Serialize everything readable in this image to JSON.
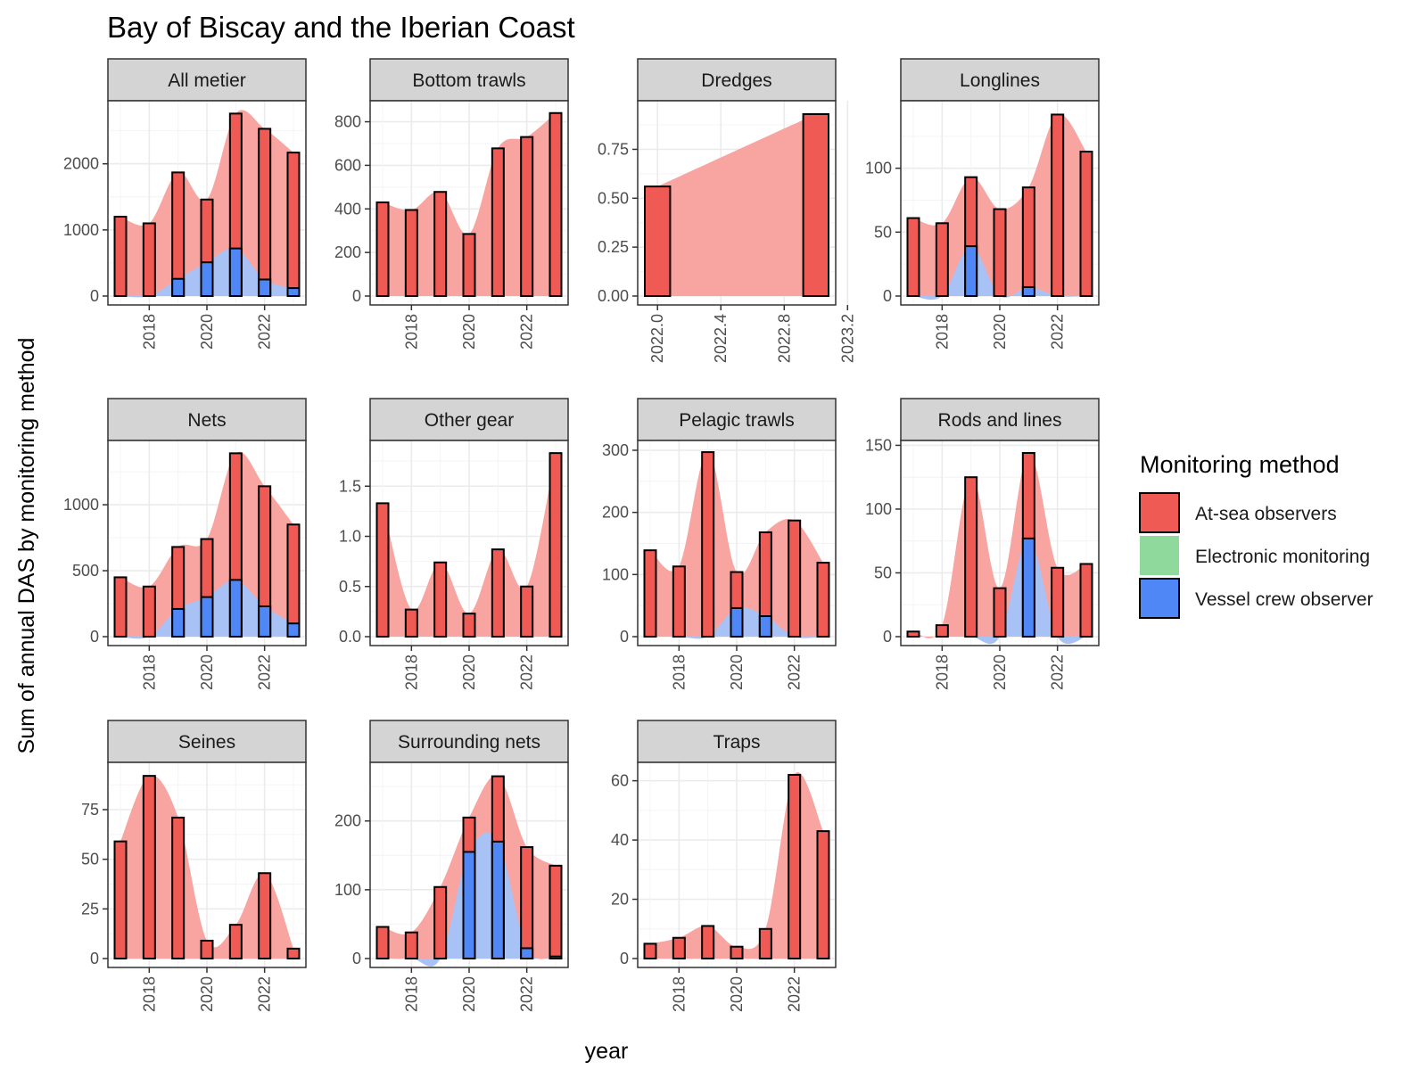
{
  "chart_data": {
    "type": "bar",
    "title": "Bay of Biscay and the Iberian Coast",
    "xlabel": "year",
    "ylabel": "Sum of annual DAS by monitoring method",
    "legend": {
      "title": "Monitoring method",
      "position": "right",
      "entries": [
        {
          "name": "At-sea observers",
          "color": "#F8766D"
        },
        {
          "name": "Electronic monitoring",
          "color": "#7CD192"
        },
        {
          "name": "Vessel crew observer",
          "color": "#5B8FF9"
        }
      ]
    },
    "colors": {
      "at_sea": "#F05A54",
      "at_sea_area": "#F8A4A0",
      "electronic": "#8ED99B",
      "vessel": "#5087F7",
      "vessel_area": "#A9C2F6",
      "strip_bg": "#D4D4D4",
      "grid_major": "#EBEBEB",
      "grid_minor": "#F4F4F4"
    },
    "grid": true,
    "panels": [
      {
        "name": "All metier",
        "years": [
          2017,
          2018,
          2019,
          2020,
          2021,
          2022,
          2023
        ],
        "at_sea_observers": [
          1200,
          1100,
          1870,
          1460,
          2760,
          2530,
          2170
        ],
        "vessel_crew_observer": [
          0,
          0,
          260,
          510,
          720,
          250,
          120
        ],
        "ylim": [
          0,
          2900
        ],
        "yticks": [
          0,
          1000,
          2000
        ],
        "xticks": [
          2018,
          2020,
          2022
        ]
      },
      {
        "name": "Bottom trawls",
        "years": [
          2017,
          2018,
          2019,
          2020,
          2021,
          2022,
          2023
        ],
        "at_sea_observers": [
          430,
          395,
          478,
          285,
          678,
          730,
          840
        ],
        "vessel_crew_observer": [
          0,
          0,
          0,
          0,
          0,
          0,
          0
        ],
        "ylim": [
          0,
          880
        ],
        "yticks": [
          0,
          200,
          400,
          600,
          800
        ],
        "xticks": [
          2018,
          2020,
          2022
        ]
      },
      {
        "name": "Dredges",
        "years": [
          2022,
          2023
        ],
        "at_sea_observers": [
          0.56,
          0.93
        ],
        "vessel_crew_observer": [
          0,
          0
        ],
        "ylim": [
          0,
          0.98
        ],
        "yticks": [
          0,
          0.25,
          0.5,
          0.75
        ],
        "ytick_labels": [
          "0.00",
          "0.25",
          "0.50",
          "0.75"
        ],
        "xlim": [
          1921.9,
          2023.25
        ],
        "xticks": [
          2022.0,
          2022.4,
          2022.8,
          2023.2
        ],
        "xtick_labels": [
          "2022.0",
          "2022.4",
          "2022.8",
          "2023.2"
        ]
      },
      {
        "name": "Longlines",
        "years": [
          2017,
          2018,
          2019,
          2020,
          2021,
          2022,
          2023
        ],
        "at_sea_observers": [
          61,
          57,
          93,
          68,
          85,
          142,
          113
        ],
        "vessel_crew_observer": [
          0,
          0,
          39,
          0,
          7,
          0,
          0
        ],
        "ylim": [
          0,
          150
        ],
        "yticks": [
          0,
          50,
          100
        ],
        "xticks": [
          2018,
          2020,
          2022
        ]
      },
      {
        "name": "Nets",
        "years": [
          2017,
          2018,
          2019,
          2020,
          2021,
          2022,
          2023
        ],
        "at_sea_observers": [
          450,
          380,
          680,
          740,
          1390,
          1140,
          850
        ],
        "vessel_crew_observer": [
          0,
          0,
          210,
          300,
          430,
          230,
          100
        ],
        "ylim": [
          0,
          1460
        ],
        "yticks": [
          0,
          500,
          1000
        ],
        "xticks": [
          2018,
          2020,
          2022
        ]
      },
      {
        "name": "Other gear",
        "years": [
          2017,
          2018,
          2019,
          2020,
          2021,
          2022,
          2023
        ],
        "at_sea_observers": [
          1.33,
          0.27,
          0.74,
          0.23,
          0.87,
          0.5,
          1.83
        ],
        "vessel_crew_observer": [
          0,
          0,
          0,
          0,
          0,
          0,
          0
        ],
        "ylim": [
          0,
          1.92
        ],
        "yticks": [
          0,
          0.5,
          1,
          1.5
        ],
        "ytick_labels": [
          "0.0",
          "0.5",
          "1.0",
          "1.5"
        ],
        "xticks": [
          2018,
          2020,
          2022
        ]
      },
      {
        "name": "Pelagic trawls",
        "years": [
          2017,
          2018,
          2019,
          2020,
          2021,
          2022,
          2023
        ],
        "at_sea_observers": [
          139,
          113,
          297,
          104,
          168,
          187,
          119
        ],
        "vessel_crew_observer": [
          0,
          0,
          0,
          46,
          33,
          0,
          0
        ],
        "ylim": [
          0,
          310
        ],
        "yticks": [
          0,
          100,
          200,
          300
        ],
        "xticks": [
          2018,
          2020,
          2022
        ]
      },
      {
        "name": "Rods and lines",
        "years": [
          2017,
          2018,
          2019,
          2020,
          2021,
          2022,
          2023
        ],
        "at_sea_observers": [
          4,
          9,
          125,
          38,
          144,
          54,
          57
        ],
        "vessel_crew_observer": [
          0,
          0,
          0,
          0,
          77,
          0,
          0
        ],
        "ylim": [
          0,
          151
        ],
        "yticks": [
          0,
          50,
          100,
          150
        ],
        "xticks": [
          2018,
          2020,
          2022
        ]
      },
      {
        "name": "Seines",
        "years": [
          2017,
          2018,
          2019,
          2020,
          2021,
          2022,
          2023
        ],
        "at_sea_observers": [
          59,
          92,
          71,
          9,
          17,
          43,
          5
        ],
        "vessel_crew_observer": [
          0,
          0,
          0,
          0,
          0,
          0,
          0
        ],
        "ylim": [
          0,
          97
        ],
        "yticks": [
          0,
          25,
          50,
          75
        ],
        "xticks": [
          2018,
          2020,
          2022
        ]
      },
      {
        "name": "Surrounding nets",
        "years": [
          2017,
          2018,
          2019,
          2020,
          2021,
          2022,
          2023
        ],
        "at_sea_observers": [
          46,
          38,
          104,
          205,
          265,
          162,
          135
        ],
        "vessel_crew_observer": [
          0,
          0,
          0,
          155,
          170,
          15,
          3
        ],
        "ylim": [
          0,
          280
        ],
        "yticks": [
          0,
          100,
          200
        ],
        "xticks": [
          2018,
          2020,
          2022
        ]
      },
      {
        "name": "Traps",
        "years": [
          2017,
          2018,
          2019,
          2020,
          2021,
          2022,
          2023
        ],
        "at_sea_observers": [
          5,
          7,
          11,
          4,
          10,
          62,
          43
        ],
        "vessel_crew_observer": [
          0,
          0,
          0,
          0,
          0,
          0,
          0
        ],
        "ylim": [
          0,
          65
        ],
        "yticks": [
          0,
          20,
          40,
          60
        ],
        "xticks": [
          2018,
          2020,
          2022
        ]
      }
    ]
  }
}
